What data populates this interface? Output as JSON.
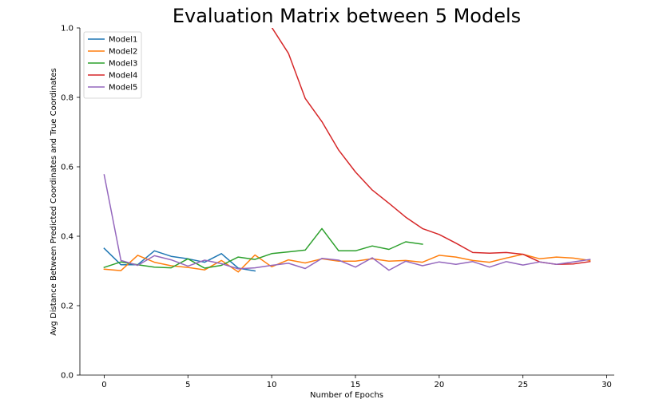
{
  "chart_data": {
    "type": "line",
    "title": "Evaluation Matrix between 5 Models",
    "xlabel": "Number of Epochs",
    "ylabel": "Avg Distance Between Predicted Coordinates and True Coordinates",
    "xlim": [
      -1.45,
      30.45
    ],
    "ylim": [
      0.0,
      1.0
    ],
    "xticks": [
      0,
      5,
      10,
      15,
      20,
      25,
      30
    ],
    "yticks": [
      0.0,
      0.2,
      0.4,
      0.6,
      0.8,
      1.0
    ],
    "xtick_labels": [
      "0",
      "5",
      "10",
      "15",
      "20",
      "25",
      "30"
    ],
    "ytick_labels": [
      "0.0",
      "0.2",
      "0.4",
      "0.6",
      "0.8",
      "1.0"
    ],
    "grid": false,
    "legend_position": "top-left",
    "series": [
      {
        "name": "Model1",
        "color": "#1f77b4",
        "x": [
          0,
          1,
          2,
          3,
          4,
          5,
          6,
          7,
          8,
          9
        ],
        "y": [
          0.365,
          0.318,
          0.318,
          0.358,
          0.342,
          0.335,
          0.325,
          0.35,
          0.308,
          0.3
        ]
      },
      {
        "name": "Model2",
        "color": "#ff7f0e",
        "x": [
          0,
          1,
          2,
          3,
          4,
          5,
          6,
          7,
          8,
          9,
          10,
          11,
          12,
          13,
          14,
          15,
          16,
          17,
          18,
          19,
          20,
          21,
          22,
          23,
          24,
          25,
          26,
          27,
          28,
          29
        ],
        "y": [
          0.305,
          0.301,
          0.345,
          0.325,
          0.315,
          0.31,
          0.303,
          0.33,
          0.297,
          0.346,
          0.312,
          0.332,
          0.323,
          0.335,
          0.328,
          0.328,
          0.335,
          0.328,
          0.33,
          0.325,
          0.345,
          0.34,
          0.33,
          0.325,
          0.337,
          0.348,
          0.335,
          0.34,
          0.337,
          0.33
        ]
      },
      {
        "name": "Model3",
        "color": "#2ca02c",
        "x": [
          0,
          1,
          2,
          3,
          4,
          5,
          6,
          7,
          8,
          9,
          10,
          11,
          12,
          13,
          14,
          15,
          16,
          17,
          18,
          19
        ],
        "y": [
          0.31,
          0.326,
          0.318,
          0.311,
          0.309,
          0.335,
          0.308,
          0.316,
          0.34,
          0.333,
          0.35,
          0.355,
          0.36,
          0.422,
          0.358,
          0.358,
          0.372,
          0.362,
          0.384,
          0.377
        ]
      },
      {
        "name": "Model4",
        "color": "#d62728",
        "x": [
          10,
          11,
          12,
          13,
          14,
          15,
          16,
          17,
          18,
          19,
          20,
          21,
          22,
          23,
          24,
          25,
          26,
          27,
          28,
          29
        ],
        "y": [
          1.002,
          0.927,
          0.797,
          0.73,
          0.648,
          0.585,
          0.533,
          0.495,
          0.455,
          0.422,
          0.405,
          0.38,
          0.353,
          0.351,
          0.353,
          0.348,
          0.326,
          0.319,
          0.32,
          0.327
        ]
      },
      {
        "name": "Model5",
        "color": "#9467bd",
        "x": [
          0,
          1,
          2,
          3,
          4,
          5,
          6,
          7,
          8,
          9,
          10,
          11,
          12,
          13,
          14,
          15,
          16,
          17,
          18,
          19,
          20,
          21,
          22,
          23,
          24,
          25,
          26,
          27,
          28,
          29
        ],
        "y": [
          0.577,
          0.33,
          0.316,
          0.344,
          0.332,
          0.314,
          0.331,
          0.321,
          0.306,
          0.309,
          0.316,
          0.322,
          0.307,
          0.336,
          0.331,
          0.311,
          0.338,
          0.302,
          0.328,
          0.315,
          0.326,
          0.319,
          0.327,
          0.311,
          0.327,
          0.317,
          0.326,
          0.319,
          0.326,
          0.333
        ]
      }
    ]
  }
}
